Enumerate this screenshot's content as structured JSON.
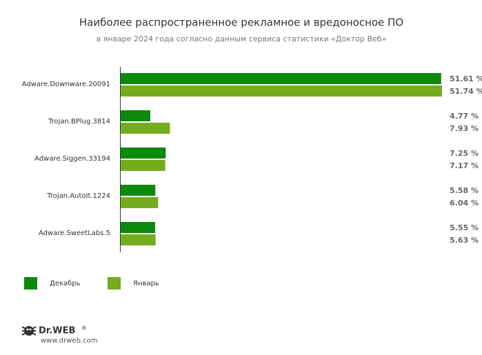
{
  "chart_data": {
    "type": "hbar",
    "title": "Наиболее распространенное рекламное и вредоносное ПО",
    "subtitle": "в январе 2024 года согласно данным сервиса статистики «Доктор Веб»",
    "categories": [
      "Adware.Downware.20091",
      "Trojan.BPlug.3814",
      "Adware.Siggen.33194",
      "Trojan.AutoIt.1224",
      "Adware.SweetLabs.5"
    ],
    "series": [
      {
        "name": "Декабрь",
        "color": "#0b8a0b",
        "values": [
          51.61,
          4.77,
          7.25,
          5.58,
          5.55
        ],
        "value_labels": [
          "51.61 %",
          "4.77 %",
          "7.25 %",
          "5.58 %",
          "5.55 %"
        ]
      },
      {
        "name": "Январь",
        "color": "#74ac1e",
        "values": [
          51.74,
          7.93,
          7.17,
          6.04,
          5.63
        ],
        "value_labels": [
          "51.74 %",
          "7.93 %",
          "7.17 %",
          "6.04 %",
          "5.63 %"
        ]
      }
    ],
    "legend": "bottom-left"
  },
  "footer": {
    "brand": "Dr.WEB",
    "registered": "®",
    "url": "www.drweb.com"
  }
}
